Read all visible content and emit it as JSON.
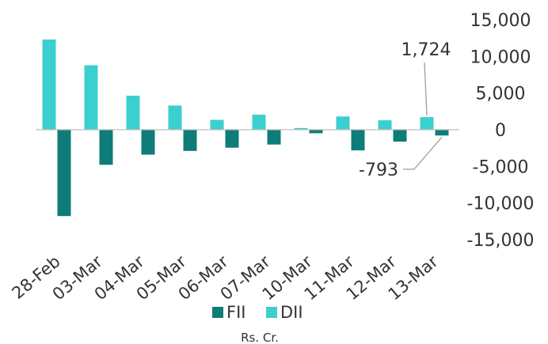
{
  "chart_data": {
    "type": "bar",
    "categories": [
      "28-Feb",
      "03-Mar",
      "04-Mar",
      "05-Mar",
      "06-Mar",
      "07-Mar",
      "10-Mar",
      "11-Mar",
      "12-Mar",
      "13-Mar"
    ],
    "series": [
      {
        "name": "FII",
        "color": "#0e7c78",
        "values": [
          -11785,
          -4788,
          -3405,
          -2895,
          -2454,
          -2025,
          -485,
          -2823,
          -1628,
          -793
        ]
      },
      {
        "name": "DII",
        "color": "#3ccfcf",
        "values": [
          12308,
          8790,
          4640,
          3300,
          1345,
          2045,
          230,
          1805,
          1285,
          1724
        ]
      }
    ],
    "ylim": [
      -15000,
      15000
    ],
    "yticks": [
      15000,
      10000,
      5000,
      0,
      -5000,
      -10000,
      -15000
    ],
    "ytick_labels": [
      "15,000",
      "10,000",
      "5,000",
      "0",
      "-5,000",
      "-10,000",
      "-15,000"
    ],
    "y_axis_position": "right",
    "grid": false,
    "legend_position": "bottom",
    "annotations": [
      {
        "category": "13-Mar",
        "series": "DII",
        "text": "1,724"
      },
      {
        "category": "13-Mar",
        "series": "FII",
        "text": "-793"
      }
    ],
    "unit_label": "Rs. Cr."
  }
}
